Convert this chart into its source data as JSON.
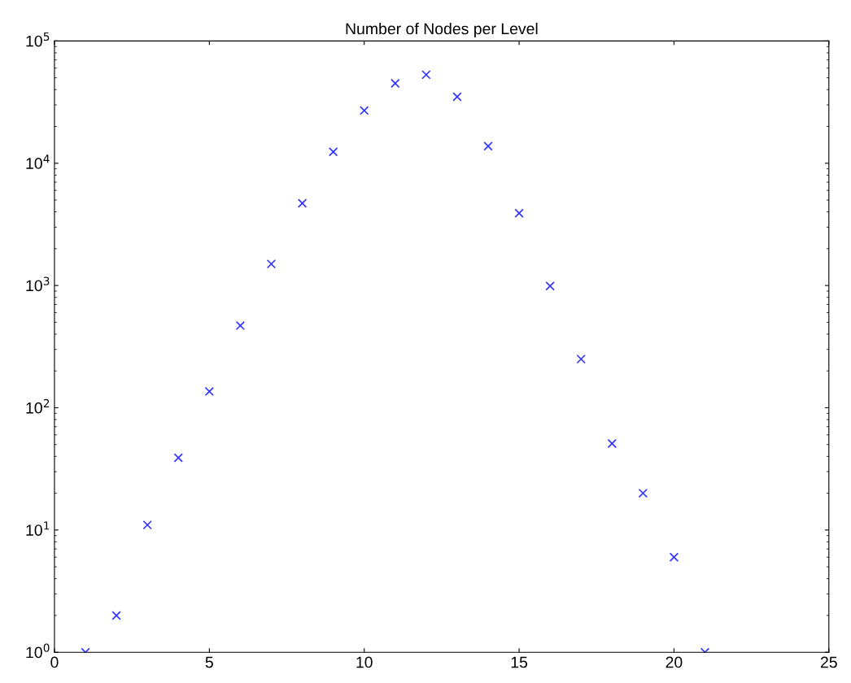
{
  "chart_data": {
    "type": "scatter",
    "title": "Number of Nodes per Level",
    "x": [
      1,
      2,
      3,
      4,
      5,
      6,
      7,
      8,
      9,
      10,
      11,
      12,
      13,
      14,
      15,
      16,
      17,
      18,
      19,
      20,
      21
    ],
    "series": [
      {
        "color": "#3333ff",
        "values": [
          1,
          2,
          11,
          39,
          136,
          470,
          1500,
          4700,
          12400,
          27000,
          45000,
          53000,
          35000,
          13800,
          3900,
          990,
          250,
          51,
          20,
          6,
          1
        ]
      }
    ],
    "xlim": [
      0,
      25
    ],
    "xticks": [
      0,
      5,
      10,
      15,
      20,
      25
    ],
    "ylim": [
      1,
      100000
    ],
    "log": "y",
    "yticks": [
      {
        "value": 1,
        "label": "10$^{0}$"
      },
      {
        "value": 10,
        "label": "10$^{1}$"
      },
      {
        "value": 100,
        "label": "10$^{2}$"
      },
      {
        "value": 1000,
        "label": "10$^{3}$"
      },
      {
        "value": 10000,
        "label": "10$^{4}$"
      },
      {
        "value": 100000,
        "label": "10$^{5}$"
      }
    ],
    "marker": "cross",
    "grid": false,
    "legend": false
  }
}
